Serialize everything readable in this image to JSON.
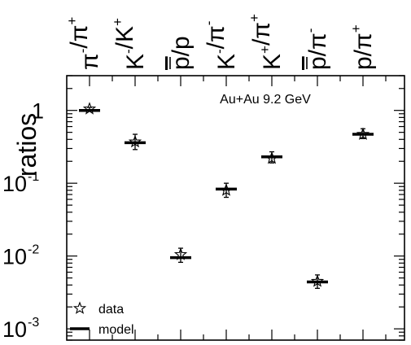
{
  "chart_data": {
    "type": "scatter",
    "title": "",
    "annotation": "Au+Au 9.2 GeV",
    "ylabel": "ratios",
    "yscale": "log",
    "ylim": [
      0.0007,
      3.0
    ],
    "yticks": [
      {
        "value": 1,
        "base": "1",
        "exp": ""
      },
      {
        "value": 0.1,
        "base": "10",
        "exp": "-1"
      },
      {
        "value": 0.01,
        "base": "10",
        "exp": "-2"
      },
      {
        "value": 0.001,
        "base": "10",
        "exp": "-3"
      }
    ],
    "categories": [
      {
        "num": "π",
        "num_sup": "-",
        "den": "π",
        "den_sup": "+",
        "bar": false
      },
      {
        "num": "K",
        "num_sup": "-",
        "den": "K",
        "den_sup": "+",
        "bar": false
      },
      {
        "num": "p",
        "num_sup": "",
        "den": "p",
        "den_sup": "",
        "bar": true
      },
      {
        "num": "K",
        "num_sup": "-",
        "den": "π",
        "den_sup": "-",
        "bar": false
      },
      {
        "num": "K",
        "num_sup": "+",
        "den": "π",
        "den_sup": "+",
        "bar": false
      },
      {
        "num": "p",
        "num_sup": "",
        "den": "π",
        "den_sup": "-",
        "bar": true
      },
      {
        "num": "p",
        "num_sup": "",
        "den": "π",
        "den_sup": "+",
        "bar": false
      }
    ],
    "series": [
      {
        "name": "data",
        "marker": "star",
        "values": [
          1.05,
          0.37,
          0.0105,
          0.08,
          0.22,
          0.0045,
          0.47
        ],
        "err_low": [
          1.0,
          0.29,
          0.0082,
          0.064,
          0.19,
          0.0036,
          0.41
        ],
        "err_high": [
          1.1,
          0.47,
          0.0128,
          0.1,
          0.27,
          0.0055,
          0.56
        ]
      },
      {
        "name": "model",
        "marker": "bar",
        "values": [
          1.0,
          0.36,
          0.0095,
          0.083,
          0.23,
          0.0044,
          0.47
        ]
      }
    ],
    "legend": {
      "position": "bottom-left",
      "entries": [
        "data",
        "model"
      ]
    },
    "grid": false
  }
}
